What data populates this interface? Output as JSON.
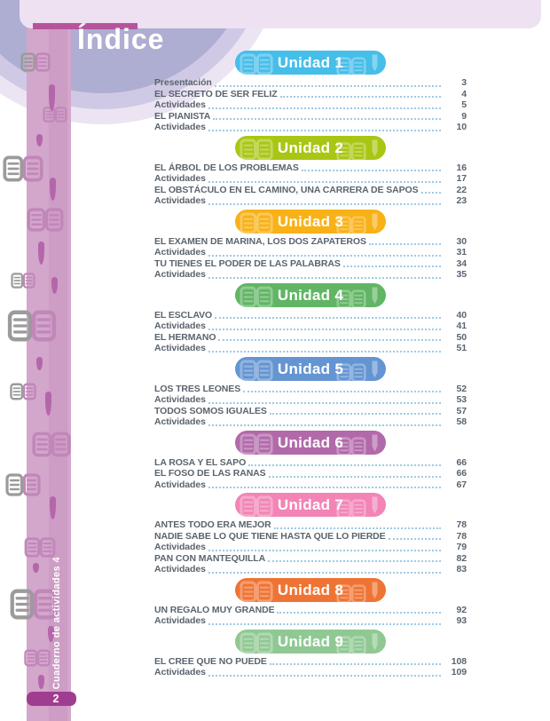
{
  "page": {
    "title": "Índice",
    "page_number": "2",
    "spine_text": "Cuaderno de actividades 4"
  },
  "icons": {
    "sidebar_decoration": "open-book-icon",
    "sidebar_dash": "pencil-dash-icon",
    "pill_decoration_left": "open-book-icon",
    "pill_decoration_right": "open-book-icon",
    "pill_pencil": "pencil-icon"
  },
  "colors": {
    "side_band": "#d3a6cb",
    "side_band_stripe": "#c793bf",
    "header_circle": "#aeadd2",
    "header_ring": "#cfc9e5",
    "top_band": "#eee1f2",
    "title_bar": "#b5549c",
    "entry_text": "#5a646e",
    "leader_dots": "#9ecae6",
    "page_badge": "#a03d90",
    "book_icon_gray": "#9b9b9b",
    "book_icon_pink": "#c187b9"
  },
  "units": [
    {
      "label": "Unidad 1",
      "color": "#45bee9",
      "entries": [
        {
          "title": "Presentación",
          "page": "3"
        },
        {
          "title": "EL SECRETO DE SER FELIZ",
          "page": "4"
        },
        {
          "title": "Actividades",
          "page": "5"
        },
        {
          "title": "EL PIANISTA",
          "page": "9"
        },
        {
          "title": "Actividades",
          "page": "10"
        }
      ]
    },
    {
      "label": "Unidad 2",
      "color": "#a9c614",
      "entries": [
        {
          "title": "EL ÁRBOL DE LOS PROBLEMAS",
          "page": "16"
        },
        {
          "title": "Actividades",
          "page": "17"
        },
        {
          "title": "EL OBSTÁCULO EN EL CAMINO, UNA CARRERA DE SAPOS",
          "page": "22"
        },
        {
          "title": "Actividades",
          "page": "23"
        }
      ]
    },
    {
      "label": "Unidad 3",
      "color": "#f8b117",
      "entries": [
        {
          "title": "EL EXAMEN DE MARINA, LOS DOS ZAPATEROS",
          "page": "30"
        },
        {
          "title": "Actividades",
          "page": "31"
        },
        {
          "title": "TU TIENES EL PODER DE LAS PALABRAS",
          "page": "34"
        },
        {
          "title": "Actividades",
          "page": "35"
        }
      ]
    },
    {
      "label": "Unidad 4",
      "color": "#61b564",
      "entries": [
        {
          "title": "EL ESCLAVO",
          "page": "40"
        },
        {
          "title": "Actividades",
          "page": "41"
        },
        {
          "title": "EL HERMANO",
          "page": "50"
        },
        {
          "title": "Actividades",
          "page": "51"
        }
      ]
    },
    {
      "label": "Unidad 5",
      "color": "#6495d2",
      "entries": [
        {
          "title": "LOS TRES LEONES",
          "page": "52"
        },
        {
          "title": "Actividades",
          "page": "53"
        },
        {
          "title": "TODOS SOMOS IGUALES",
          "page": "57"
        },
        {
          "title": "Actividades",
          "page": "58"
        }
      ]
    },
    {
      "label": "Unidad 6",
      "color": "#b269aa",
      "entries": [
        {
          "title": "LA ROSA Y EL SAPO",
          "page": "66"
        },
        {
          "title": "EL FOSO DE LAS RANAS",
          "page": "66"
        },
        {
          "title": "Actividades",
          "page": "67"
        }
      ]
    },
    {
      "label": "Unidad 7",
      "color": "#f285b5",
      "entries": [
        {
          "title": "ANTES TODO ERA MEJOR",
          "page": "78"
        },
        {
          "title": "NADIE SABE LO QUE TIENE HASTA QUE LO PIERDE",
          "page": "78"
        },
        {
          "title": "Actividades",
          "page": "79"
        },
        {
          "title": "PAN CON MANTEQUILLA",
          "page": "82"
        },
        {
          "title": "Actividades",
          "page": "83"
        }
      ]
    },
    {
      "label": "Unidad 8",
      "color": "#ef7434",
      "entries": [
        {
          "title": "UN REGALO MUY GRANDE",
          "page": "92"
        },
        {
          "title": "Actividades",
          "page": "93"
        }
      ]
    },
    {
      "label": "Unidad 9",
      "color": "#90c893",
      "entries": [
        {
          "title": "EL CREE QUE NO PUEDE",
          "page": "108"
        },
        {
          "title": "Actividades",
          "page": "109"
        }
      ]
    }
  ]
}
